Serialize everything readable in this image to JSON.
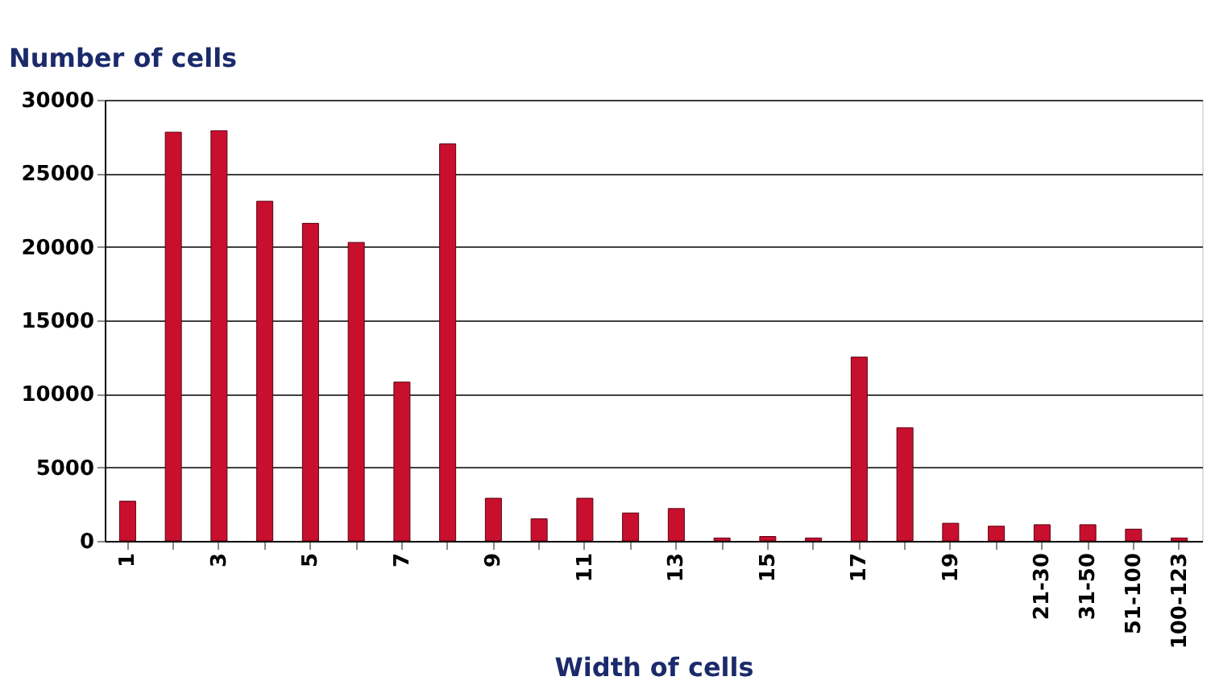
{
  "chart_data": {
    "type": "bar",
    "xlabel": "Width of cells",
    "ylabel": "Number of cells",
    "categories": [
      "1",
      null,
      "3",
      null,
      "5",
      null,
      "7",
      null,
      "9",
      null,
      "11",
      null,
      "13",
      null,
      "15",
      null,
      "17",
      null,
      "19",
      null,
      "21-30",
      "31-50",
      "51-100",
      "100-123"
    ],
    "values": [
      2700,
      27800,
      27900,
      23100,
      21600,
      20300,
      10800,
      27000,
      2900,
      1500,
      2900,
      1900,
      2200,
      200,
      300,
      200,
      12500,
      7700,
      1200,
      1000,
      1100,
      1100,
      800,
      200
    ],
    "color": "#c8102e",
    "ylim": [
      0,
      30000
    ],
    "yticks": [
      0,
      5000,
      10000,
      15000,
      20000,
      25000,
      30000
    ],
    "grid": "y"
  }
}
